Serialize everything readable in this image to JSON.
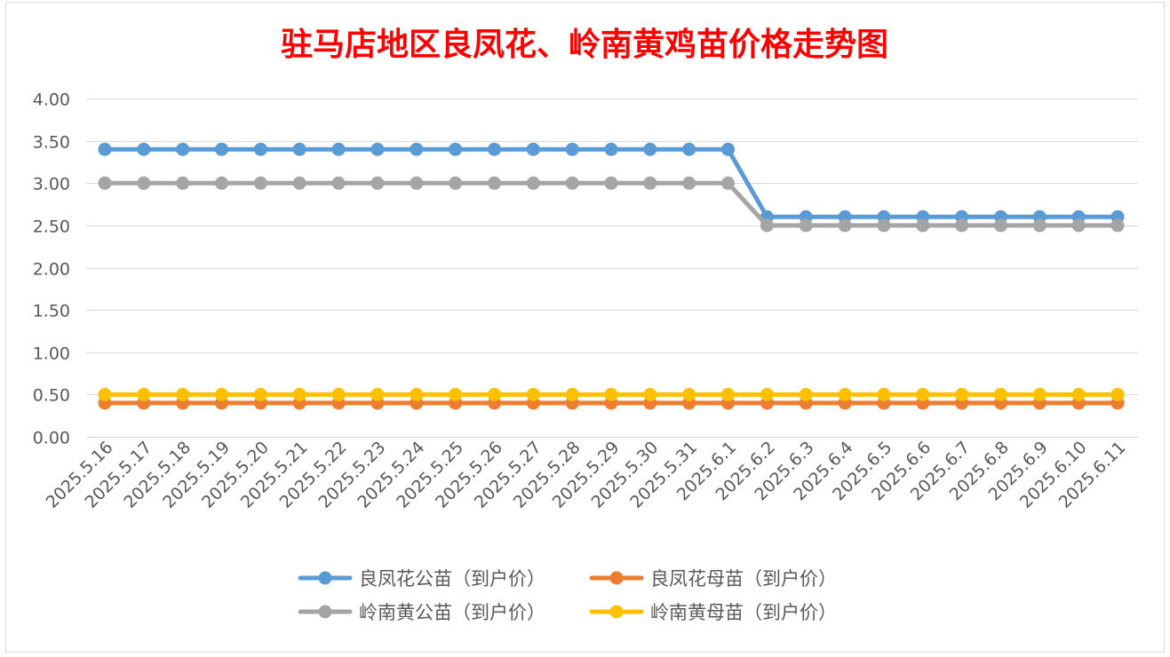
{
  "chart_data": {
    "type": "line",
    "title": "驻马店地区良凤花、岭南黄鸡苗价格走势图",
    "xlabel": "",
    "ylabel": "",
    "ylim": [
      0,
      4
    ],
    "y_ticks": [
      "0.00",
      "0.50",
      "1.00",
      "1.50",
      "2.00",
      "2.50",
      "3.00",
      "3.50",
      "4.00"
    ],
    "grid": true,
    "legend_position": "bottom",
    "categories": [
      "2025.5.16",
      "2025.5.17",
      "2025.5.18",
      "2025.5.19",
      "2025.5.20",
      "2025.5.21",
      "2025.5.22",
      "2025.5.23",
      "2025.5.24",
      "2025.5.25",
      "2025.5.26",
      "2025.5.27",
      "2025.5.28",
      "2025.5.29",
      "2025.5.30",
      "2025.5.31",
      "2025.6.1",
      "2025.6.2",
      "2025.6.3",
      "2025.6.4",
      "2025.6.5",
      "2025.6.6",
      "2025.6.7",
      "2025.6.8",
      "2025.6.9",
      "2025.6.10",
      "2025.6.11"
    ],
    "series": [
      {
        "name": "良凤花公苗（到户价）",
        "color": "#5B9BD5",
        "values": [
          3.4,
          3.4,
          3.4,
          3.4,
          3.4,
          3.4,
          3.4,
          3.4,
          3.4,
          3.4,
          3.4,
          3.4,
          3.4,
          3.4,
          3.4,
          3.4,
          3.4,
          2.6,
          2.6,
          2.6,
          2.6,
          2.6,
          2.6,
          2.6,
          2.6,
          2.6,
          2.6
        ]
      },
      {
        "name": "良凤花母苗（到户价）",
        "color": "#ED7D31",
        "values": [
          0.4,
          0.4,
          0.4,
          0.4,
          0.4,
          0.4,
          0.4,
          0.4,
          0.4,
          0.4,
          0.4,
          0.4,
          0.4,
          0.4,
          0.4,
          0.4,
          0.4,
          0.4,
          0.4,
          0.4,
          0.4,
          0.4,
          0.4,
          0.4,
          0.4,
          0.4,
          0.4
        ]
      },
      {
        "name": "岭南黄公苗（到户价）",
        "color": "#A5A5A5",
        "values": [
          3.0,
          3.0,
          3.0,
          3.0,
          3.0,
          3.0,
          3.0,
          3.0,
          3.0,
          3.0,
          3.0,
          3.0,
          3.0,
          3.0,
          3.0,
          3.0,
          3.0,
          2.5,
          2.5,
          2.5,
          2.5,
          2.5,
          2.5,
          2.5,
          2.5,
          2.5,
          2.5
        ]
      },
      {
        "name": "岭南黄母苗（到户价）",
        "color": "#FFC000",
        "values": [
          0.5,
          0.5,
          0.5,
          0.5,
          0.5,
          0.5,
          0.5,
          0.5,
          0.5,
          0.5,
          0.5,
          0.5,
          0.5,
          0.5,
          0.5,
          0.5,
          0.5,
          0.5,
          0.5,
          0.5,
          0.5,
          0.5,
          0.5,
          0.5,
          0.5,
          0.5,
          0.5
        ]
      }
    ],
    "title_color": "#FF0000",
    "axis_text_color": "#595959",
    "grid_color": "#D9D9D9",
    "series_draw_order": [
      0,
      2,
      1,
      3
    ]
  }
}
